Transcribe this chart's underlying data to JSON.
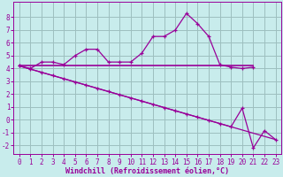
{
  "xlabel": "Windchill (Refroidissement éolien,°C)",
  "background_color": "#c8ecec",
  "grid_color": "#9dbfbf",
  "line_color": "#990099",
  "x": [
    0,
    1,
    2,
    3,
    4,
    5,
    6,
    7,
    8,
    9,
    10,
    11,
    12,
    13,
    14,
    15,
    16,
    17,
    18,
    19,
    20,
    21,
    22,
    23
  ],
  "line_peak": [
    4.2,
    4.0,
    4.5,
    4.5,
    4.3,
    5.0,
    5.5,
    5.5,
    4.5,
    4.5,
    4.5,
    5.2,
    6.5,
    6.5,
    7.0,
    8.3,
    7.5,
    6.5,
    4.3,
    4.1,
    4.0,
    4.1,
    null,
    null
  ],
  "line_flat_x": [
    0,
    1,
    2,
    3,
    4,
    5,
    6,
    7,
    8,
    9,
    10,
    11,
    12,
    13,
    14,
    15,
    16,
    17,
    18,
    19,
    20,
    21
  ],
  "line_flat_y": [
    4.2,
    4.2,
    4.2,
    4.2,
    4.2,
    4.2,
    4.2,
    4.2,
    4.2,
    4.2,
    4.2,
    4.2,
    4.2,
    4.2,
    4.2,
    4.2,
    4.2,
    4.2,
    4.2,
    4.2,
    4.2,
    4.2
  ],
  "line_down_smooth": [
    4.2,
    3.95,
    3.7,
    3.45,
    3.2,
    2.95,
    2.7,
    2.45,
    2.2,
    1.95,
    1.7,
    1.45,
    1.2,
    0.95,
    0.7,
    0.45,
    0.2,
    -0.05,
    -0.3,
    -0.55,
    -0.8,
    -1.05,
    -1.3,
    -1.55
  ],
  "line_down_jagged": [
    4.2,
    3.95,
    3.7,
    3.45,
    3.2,
    2.95,
    2.7,
    2.45,
    2.2,
    1.95,
    1.7,
    1.45,
    1.2,
    0.95,
    0.7,
    0.45,
    0.2,
    -0.05,
    -0.3,
    -0.55,
    0.9,
    -2.2,
    -0.85,
    -1.55
  ],
  "ylim": [
    -2.7,
    9.2
  ],
  "xlim": [
    -0.5,
    23.5
  ],
  "yticks": [
    -2,
    -1,
    0,
    1,
    2,
    3,
    4,
    5,
    6,
    7,
    8
  ],
  "xticks": [
    0,
    1,
    2,
    3,
    4,
    5,
    6,
    7,
    8,
    9,
    10,
    11,
    12,
    13,
    14,
    15,
    16,
    17,
    18,
    19,
    20,
    21,
    22,
    23
  ]
}
